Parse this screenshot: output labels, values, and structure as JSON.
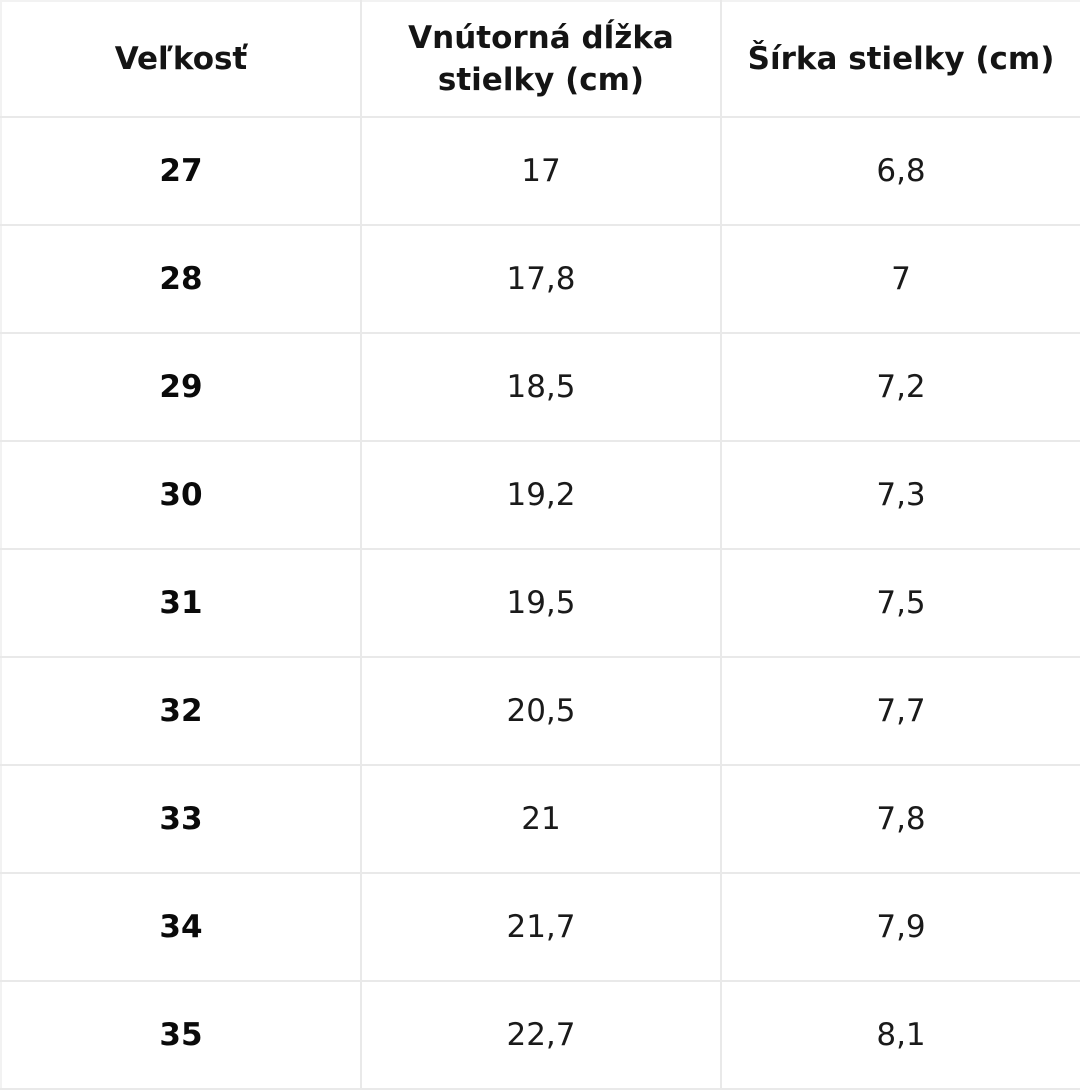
{
  "table": {
    "headers": [
      "Veľkosť",
      "Vnútorná dĺžka stielky (cm)",
      "Šírka stielky (cm)"
    ],
    "rows": [
      [
        "27",
        "17",
        "6,8"
      ],
      [
        "28",
        "17,8",
        "7"
      ],
      [
        "29",
        "18,5",
        "7,2"
      ],
      [
        "30",
        "19,2",
        "7,3"
      ],
      [
        "31",
        "19,5",
        "7,5"
      ],
      [
        "32",
        "20,5",
        "7,7"
      ],
      [
        "33",
        "21",
        "7,8"
      ],
      [
        "34",
        "21,7",
        "7,9"
      ],
      [
        "35",
        "22,7",
        "8,1"
      ]
    ]
  },
  "colors": {
    "background": "#ffffff",
    "grid_lines": "#e9e9e9",
    "text": "#111111"
  }
}
